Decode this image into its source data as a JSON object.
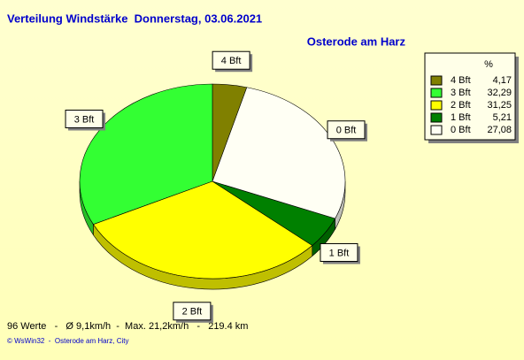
{
  "chart_data": {
    "type": "pie",
    "title": "Verteilung Windstärke  Donnerstag, 03.06.2021",
    "subtitle": "Osterode am Harz",
    "legend_header": "%",
    "categories": [
      "4 Bft",
      "3 Bft",
      "2 Bft",
      "1 Bft",
      "0 Bft"
    ],
    "values": [
      4.17,
      32.29,
      31.25,
      5.21,
      27.08
    ],
    "value_labels": [
      "4,17",
      "32,29",
      "31,25",
      "5,21",
      "27,08"
    ],
    "colors": [
      "#808000",
      "#33ff33",
      "#ffff00",
      "#008000",
      "#fffff4"
    ],
    "footer": "96 Werte   -   Ø 9,1km/h  -  Max. 21,2km/h   -   219.4 km",
    "credit": "© WsWin32  -  Osterode am Harz, City"
  }
}
